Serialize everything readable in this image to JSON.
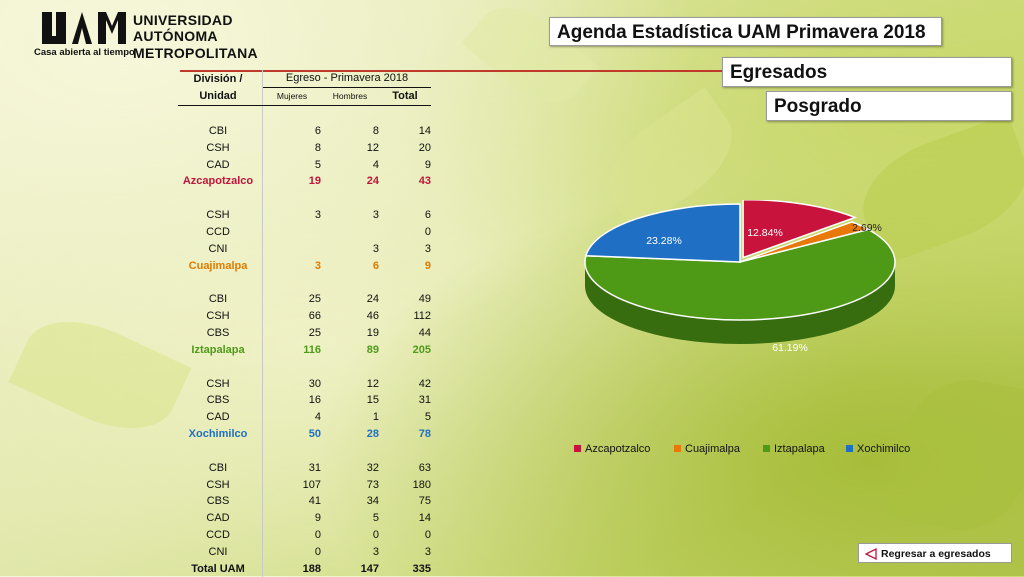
{
  "header": {
    "logo_line1": "UNIVERSIDAD",
    "logo_line2": "AUTÓNOMA",
    "logo_line3": "METROPOLITANA",
    "logo_tagline": "Casa abierta al tiempo",
    "title": "Agenda Estadística UAM Primavera 2018",
    "section": "Egresados",
    "subsection": "Posgrado"
  },
  "table": {
    "col_division": "División /",
    "col_unidad": "Unidad",
    "col_group": "Egreso - Primavera 2018",
    "col_mujeres": "Mujeres",
    "col_hombres": "Hombres",
    "col_total": "Total",
    "groups": [
      {
        "rows": [
          [
            "CBI",
            "6",
            "8",
            "14"
          ],
          [
            "CSH",
            "8",
            "12",
            "20"
          ],
          [
            "CAD",
            "5",
            "4",
            "9"
          ]
        ],
        "summary": [
          "Azcapotzalco",
          "19",
          "24",
          "43"
        ]
      },
      {
        "rows": [
          [
            "CSH",
            "3",
            "3",
            "6"
          ],
          [
            "CCD",
            "",
            "",
            "0"
          ],
          [
            "CNI",
            "",
            "3",
            "3"
          ]
        ],
        "summary": [
          "Cuajimalpa",
          "3",
          "6",
          "9"
        ]
      },
      {
        "rows": [
          [
            "CBI",
            "25",
            "24",
            "49"
          ],
          [
            "CSH",
            "66",
            "46",
            "112"
          ],
          [
            "CBS",
            "25",
            "19",
            "44"
          ]
        ],
        "summary": [
          "Iztapalapa",
          "116",
          "89",
          "205"
        ]
      },
      {
        "rows": [
          [
            "CSH",
            "30",
            "12",
            "42"
          ],
          [
            "CBS",
            "16",
            "15",
            "31"
          ],
          [
            "CAD",
            "4",
            "1",
            "5"
          ]
        ],
        "summary": [
          "Xochimilco",
          "50",
          "28",
          "78"
        ]
      },
      {
        "rows": [
          [
            "CBI",
            "31",
            "32",
            "63"
          ],
          [
            "CSH",
            "107",
            "73",
            "180"
          ],
          [
            "CBS",
            "41",
            "34",
            "75"
          ],
          [
            "CAD",
            "9",
            "5",
            "14"
          ],
          [
            "CCD",
            "0",
            "0",
            "0"
          ],
          [
            "CNI",
            "0",
            "3",
            "3"
          ]
        ],
        "summary": [
          "Total UAM",
          "188",
          "147",
          "335"
        ]
      }
    ]
  },
  "chart_data": {
    "type": "pie",
    "categories": [
      "Azcapotzalco",
      "Cuajimalpa",
      "Iztapalapa",
      "Xochimilco"
    ],
    "values": [
      12.84,
      2.69,
      61.19,
      23.28
    ],
    "labels": [
      "12.84%",
      "2.69%",
      "61.19%",
      "23.28%"
    ],
    "colors": [
      "#c8143c",
      "#e8780a",
      "#4e9a16",
      "#1f70c4"
    ],
    "legend_position": "bottom",
    "exploded": "Azcapotzalco"
  },
  "nav": {
    "back_label": "Regresar a egresados"
  }
}
